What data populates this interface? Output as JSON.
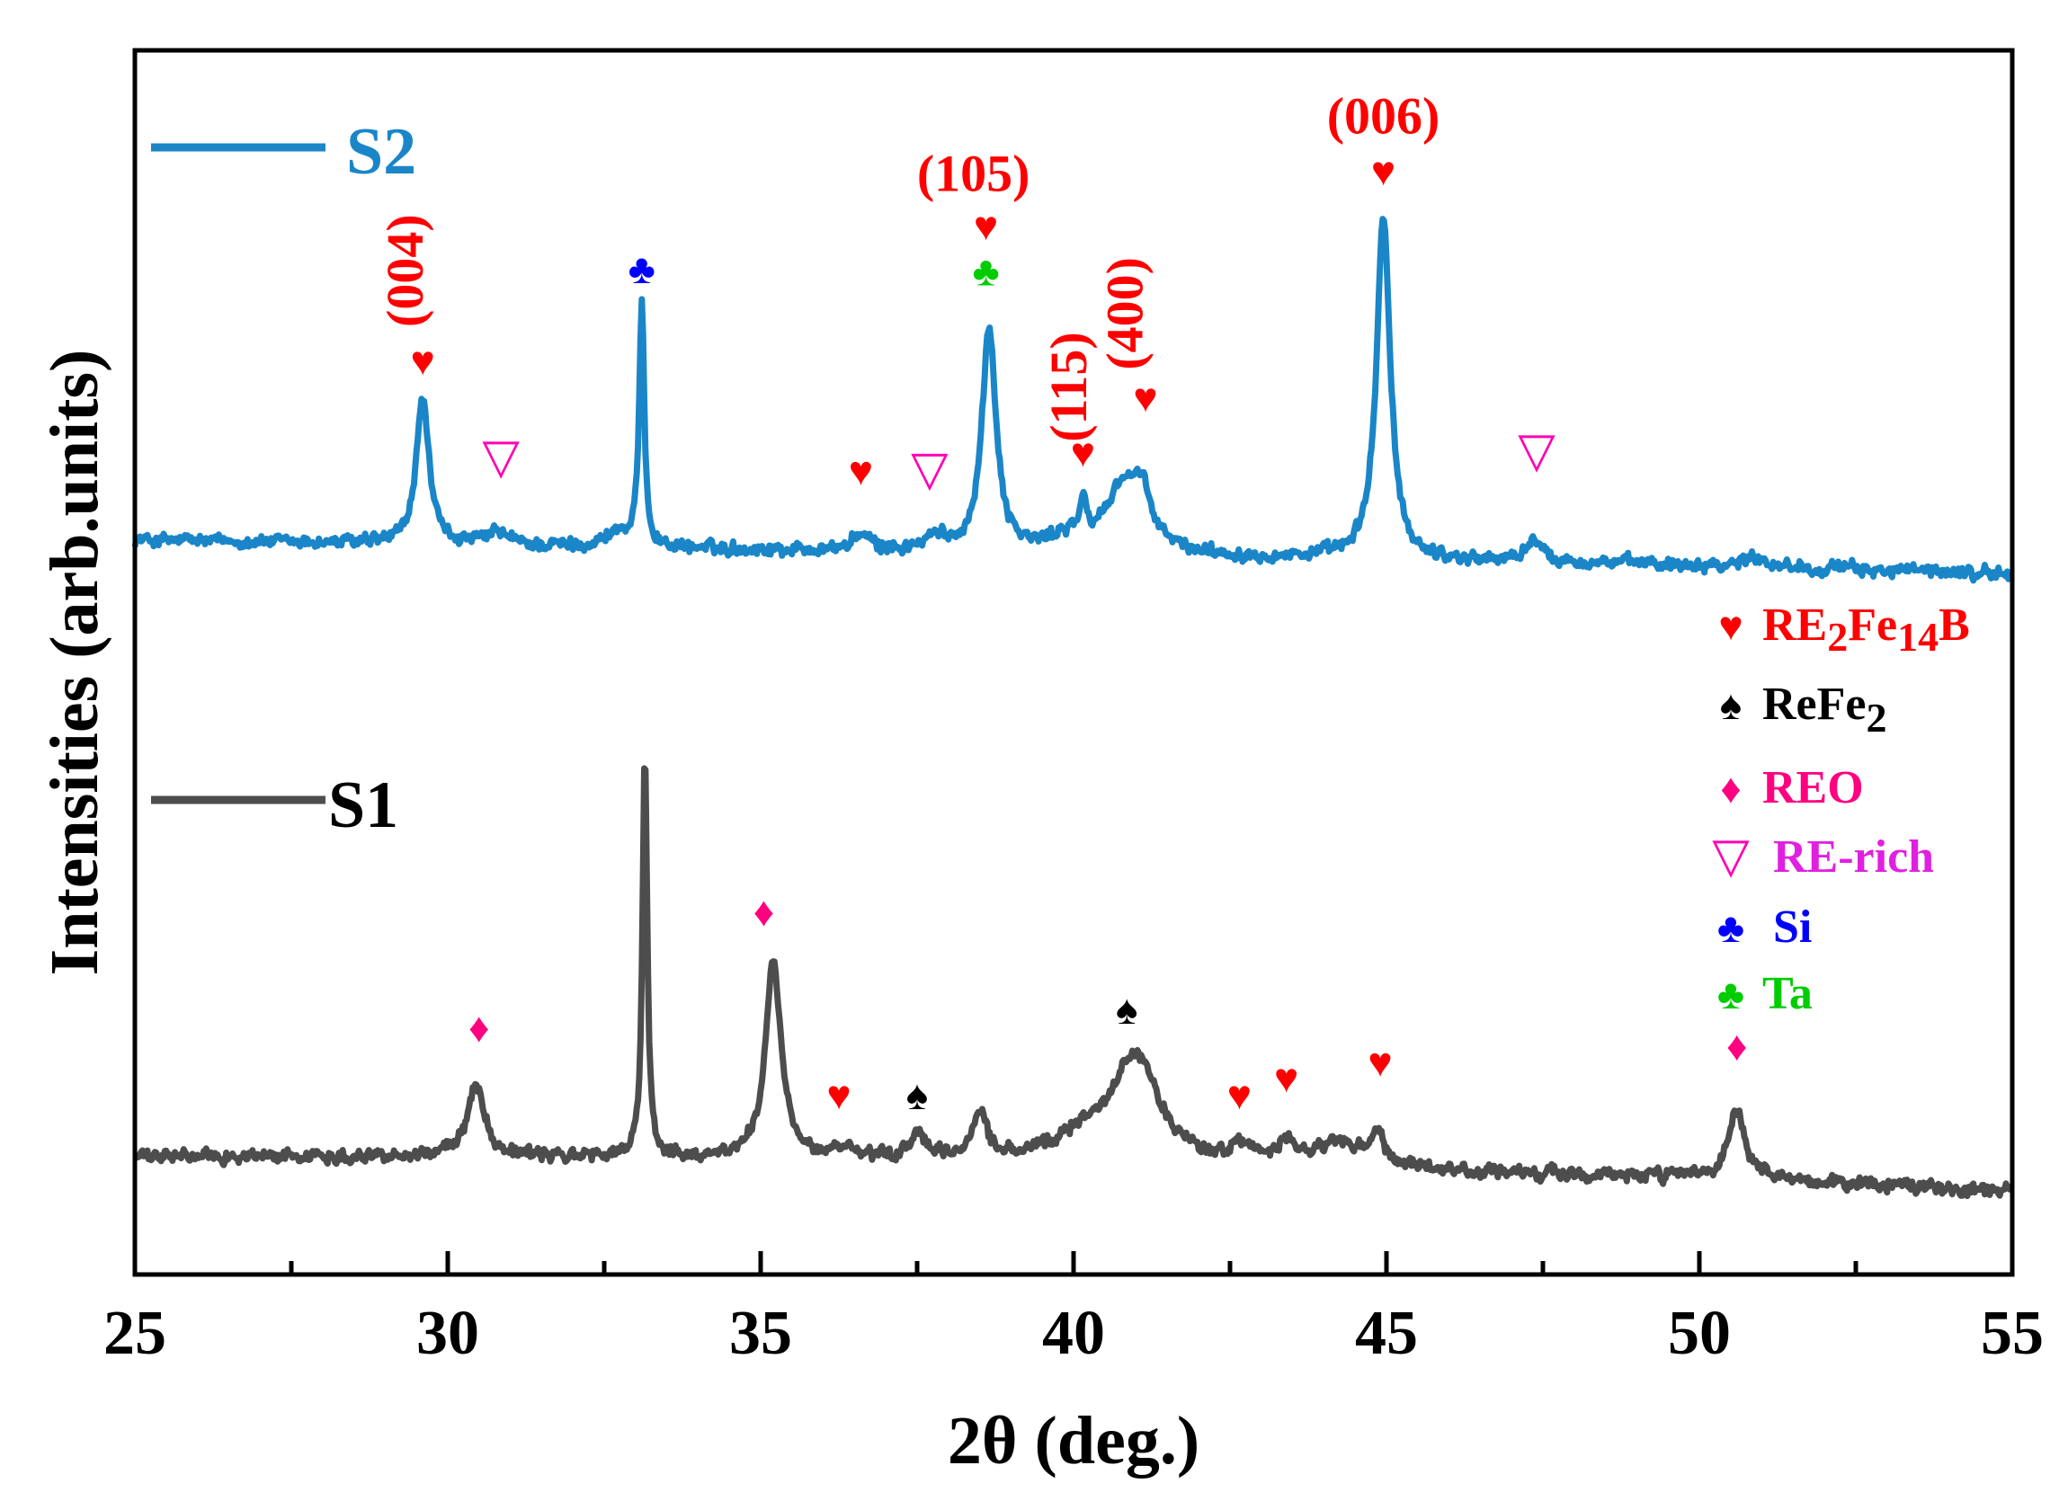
{
  "chart_data": {
    "type": "line",
    "title": "",
    "xlabel": "2θ (deg.)",
    "ylabel": "Intensities (arb.units)",
    "xlim": [
      25,
      55
    ],
    "ylim": [
      0,
      100
    ],
    "x_ticks": [
      "25",
      "30",
      "35",
      "40",
      "45",
      "50",
      "55"
    ],
    "y_ticks": [],
    "grid": false,
    "series": [
      {
        "name": "S2",
        "color": "#1a86c8",
        "baseline": [
          [
            25,
            60.0
          ],
          [
            30,
            59.6
          ],
          [
            35,
            59.2
          ],
          [
            40,
            58.8
          ],
          [
            45,
            58.4
          ],
          [
            50,
            58.0
          ],
          [
            55,
            57.2
          ]
        ],
        "peaks": [
          {
            "x": 29.6,
            "height": 12.0,
            "width": 0.12
          },
          {
            "x": 30.8,
            "height": 1.0,
            "width": 0.2
          },
          {
            "x": 32.7,
            "height": 1.2,
            "width": 0.2
          },
          {
            "x": 33.1,
            "height": 19.5,
            "width": 0.05
          },
          {
            "x": 36.6,
            "height": 1.3,
            "width": 0.15
          },
          {
            "x": 37.8,
            "height": 1.0,
            "width": 0.2
          },
          {
            "x": 38.65,
            "height": 18.0,
            "width": 0.14
          },
          {
            "x": 39.9,
            "height": 1.2,
            "width": 0.3
          },
          {
            "x": 40.15,
            "height": 2.5,
            "width": 0.06
          },
          {
            "x": 40.8,
            "height": 5.5,
            "width": 0.35
          },
          {
            "x": 41.1,
            "height": 3.0,
            "width": 0.18
          },
          {
            "x": 44.95,
            "height": 28.0,
            "width": 0.13
          },
          {
            "x": 47.35,
            "height": 2.0,
            "width": 0.12
          },
          {
            "x": 50.9,
            "height": 0.8,
            "width": 0.2
          }
        ]
      },
      {
        "name": "S1",
        "color": "#4d4d4d",
        "baseline": [
          [
            25,
            9.6
          ],
          [
            30,
            9.7
          ],
          [
            35,
            9.4
          ],
          [
            40,
            9.1
          ],
          [
            45,
            8.4
          ],
          [
            50,
            7.9
          ],
          [
            55,
            6.8
          ]
        ],
        "peaks": [
          {
            "x": 30.45,
            "height": 6.0,
            "width": 0.16
          },
          {
            "x": 33.15,
            "height": 33.5,
            "width": 0.045
          },
          {
            "x": 35.2,
            "height": 16.0,
            "width": 0.15
          },
          {
            "x": 36.3,
            "height": 0.9,
            "width": 0.15
          },
          {
            "x": 37.5,
            "height": 2.3,
            "width": 0.12
          },
          {
            "x": 38.5,
            "height": 4.0,
            "width": 0.13
          },
          {
            "x": 40.2,
            "height": 2.0,
            "width": 0.5
          },
          {
            "x": 41.0,
            "height": 8.5,
            "width": 0.45
          },
          {
            "x": 42.7,
            "height": 1.4,
            "width": 0.18
          },
          {
            "x": 43.4,
            "height": 1.7,
            "width": 0.14
          },
          {
            "x": 44.2,
            "height": 2.0,
            "width": 0.45
          },
          {
            "x": 44.85,
            "height": 2.5,
            "width": 0.14
          },
          {
            "x": 50.6,
            "height": 5.6,
            "width": 0.15
          }
        ]
      }
    ],
    "markers": [
      {
        "x": 29.6,
        "y": 73.5,
        "symbol": "♥",
        "color": "#ff0000",
        "phase": "RE2Fe14B"
      },
      {
        "x": 30.85,
        "y": 65.5,
        "symbol": "▽",
        "color": "#ff00b4",
        "phase": "RE-rich"
      },
      {
        "x": 33.1,
        "y": 81.0,
        "symbol": "♣",
        "color": "#0000ff",
        "phase": "Si"
      },
      {
        "x": 36.6,
        "y": 64.5,
        "symbol": "♥",
        "color": "#ff0000",
        "phase": "RE2Fe14B"
      },
      {
        "x": 37.7,
        "y": 64.5,
        "symbol": "▽",
        "color": "#ff00b4",
        "phase": "RE-rich"
      },
      {
        "x": 38.6,
        "y": 84.5,
        "symbol": "♥",
        "color": "#ff0000",
        "phase": "RE2Fe14B"
      },
      {
        "x": 38.6,
        "y": 80.8,
        "symbol": "♣",
        "color": "#00cc00",
        "phase": "Ta"
      },
      {
        "x": 40.15,
        "y": 66.0,
        "symbol": "♥",
        "color": "#ff0000",
        "phase": "RE2Fe14B"
      },
      {
        "x": 41.15,
        "y": 70.5,
        "symbol": "♥",
        "color": "#ff0000",
        "phase": "RE2Fe14B"
      },
      {
        "x": 44.95,
        "y": 89.0,
        "symbol": "♥",
        "color": "#ff0000",
        "phase": "RE2Fe14B"
      },
      {
        "x": 47.4,
        "y": 66.0,
        "symbol": "▽",
        "color": "#ff00b4",
        "phase": "RE-rich"
      },
      {
        "x": 30.5,
        "y": 19.0,
        "symbol": "♦",
        "color": "#ff0080",
        "phase": "REO"
      },
      {
        "x": 35.05,
        "y": 28.5,
        "symbol": "♦",
        "color": "#ff0080",
        "phase": "REO"
      },
      {
        "x": 36.25,
        "y": 13.5,
        "symbol": "♥",
        "color": "#ff0000",
        "phase": "RE2Fe14B"
      },
      {
        "x": 37.5,
        "y": 13.5,
        "symbol": "♠",
        "color": "#000000",
        "phase": "ReFe2"
      },
      {
        "x": 40.85,
        "y": 20.5,
        "symbol": "♠",
        "color": "#000000",
        "phase": "ReFe2"
      },
      {
        "x": 42.65,
        "y": 13.5,
        "symbol": "♥",
        "color": "#ff0000",
        "phase": "RE2Fe14B"
      },
      {
        "x": 43.4,
        "y": 14.9,
        "symbol": "♥",
        "color": "#ff0000",
        "phase": "RE2Fe14B"
      },
      {
        "x": 44.9,
        "y": 16.2,
        "symbol": "♥",
        "color": "#ff0000",
        "phase": "RE2Fe14B"
      },
      {
        "x": 50.6,
        "y": 17.5,
        "symbol": "♦",
        "color": "#ff0080",
        "phase": "REO"
      }
    ],
    "annotations": [
      {
        "text": "(004)",
        "x": 29.6,
        "y": 82.0,
        "rotation": -90,
        "color": "#ff0000"
      },
      {
        "text": "(105)",
        "x": 38.4,
        "y": 88.5,
        "rotation": 0,
        "color": "#ff0000"
      },
      {
        "text": "(115)",
        "x": 40.2,
        "y": 72.5,
        "rotation": -90,
        "color": "#ff0000"
      },
      {
        "text": "(400)",
        "x": 41.1,
        "y": 78.5,
        "rotation": -90,
        "color": "#ff0000"
      },
      {
        "text": "(006)",
        "x": 44.95,
        "y": 93.2,
        "rotation": 0,
        "color": "#ff0000"
      }
    ],
    "series_labels": [
      {
        "text": "S2",
        "color": "#1a86c8"
      },
      {
        "text": "S1",
        "color": "#000000"
      }
    ],
    "legend": {
      "position": "right",
      "items": [
        {
          "symbol": "♥",
          "symbol_color": "#ff0000",
          "label": "RE",
          "sub1": "2",
          "mid": "Fe",
          "sub2": "14",
          "tail": "B",
          "label_color": "#ff0000"
        },
        {
          "symbol": "♠",
          "symbol_color": "#000000",
          "label": "ReFe",
          "sub1": "2",
          "mid": "",
          "sub2": "",
          "tail": "",
          "label_color": "#000000"
        },
        {
          "symbol": "♦",
          "symbol_color": "#ff0080",
          "label": "REO",
          "sub1": "",
          "mid": "",
          "sub2": "",
          "tail": "",
          "label_color": "#ff0080"
        },
        {
          "symbol": "▽",
          "symbol_color": "#ff00b4",
          "label": "RE-rich",
          "sub1": "",
          "mid": "",
          "sub2": "",
          "tail": "",
          "label_color": "#e020e0"
        },
        {
          "symbol": "♣",
          "symbol_color": "#0000ff",
          "label": "Si",
          "sub1": "",
          "mid": "",
          "sub2": "",
          "tail": "",
          "label_color": "#0000ff"
        },
        {
          "symbol": "♣",
          "symbol_color": "#00cc00",
          "label": "Ta",
          "sub1": "",
          "mid": "",
          "sub2": "",
          "tail": "",
          "label_color": "#00cc00"
        }
      ]
    }
  }
}
